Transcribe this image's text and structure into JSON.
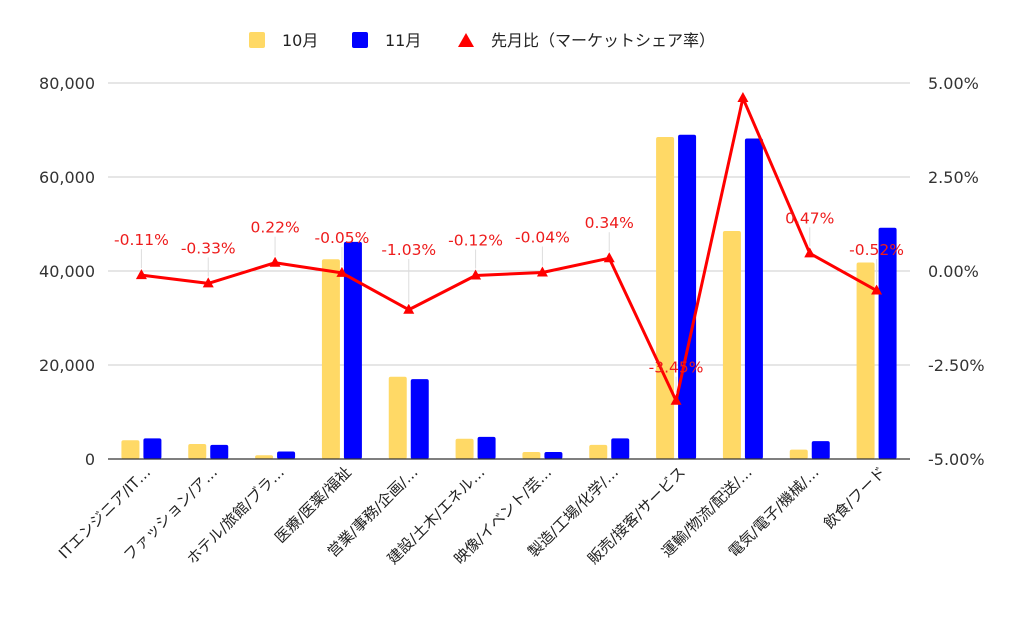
{
  "chart_data": {
    "type": "bar",
    "categories": [
      "ITエンジニア/IT…",
      "ファッション/ア…",
      "ホテル/旅館/ブラ…",
      "医療/医薬/福祉",
      "営業/事務/企画/…",
      "建設/土木/エネル…",
      "映像/イベント/芸…",
      "製造/工場/化学/…",
      "販売/接客/サービス",
      "運輸/物流/配送/…",
      "電気/電子/機械/…",
      "飲食/フード"
    ],
    "series": [
      {
        "name": "10月",
        "type": "bar",
        "axis": "left",
        "color": "#ffd966",
        "values": [
          4000,
          3200,
          800,
          42500,
          17500,
          4300,
          1500,
          3000,
          68500,
          48500,
          2000,
          41800
        ]
      },
      {
        "name": "11月",
        "type": "bar",
        "axis": "right-less",
        "color": "#0000ff",
        "values": [
          4400,
          3000,
          1600,
          46200,
          17000,
          4700,
          1500,
          4400,
          69000,
          68200,
          3800,
          49200
        ]
      },
      {
        "name": "先月比（マーケットシェア率）",
        "type": "line",
        "axis": "right",
        "color": "#ff0000",
        "values": [
          -0.11,
          -0.33,
          0.22,
          -0.05,
          -1.03,
          -0.12,
          -0.04,
          0.34,
          -3.45,
          4.6,
          0.47,
          -0.52
        ],
        "labels": [
          "-0.11%",
          "-0.33%",
          "0.22%",
          "-0.05%",
          "-1.03%",
          "-0.12%",
          "-0.04%",
          "0.34%",
          "-3.45%",
          "",
          "0.47%",
          "-0.52%"
        ]
      }
    ],
    "y_left": {
      "ylim": [
        0,
        80000
      ],
      "ticks": [
        0,
        20000,
        40000,
        60000,
        80000
      ],
      "tick_labels": [
        "0",
        "20,000",
        "40,000",
        "60,000",
        "80,000"
      ]
    },
    "y_right": {
      "ylim": [
        -5,
        5
      ],
      "ticks": [
        -5,
        -2.5,
        0,
        2.5,
        5
      ],
      "tick_labels": [
        "-5.00%",
        "-2.50%",
        "0.00%",
        "2.50%",
        "5.00%"
      ]
    },
    "grid": true,
    "legend": "top-center",
    "title": "",
    "xlabel": "",
    "ylabel": ""
  }
}
